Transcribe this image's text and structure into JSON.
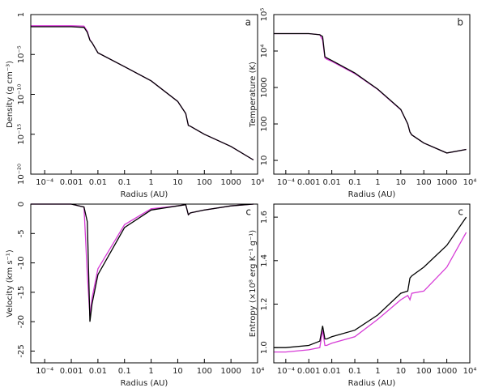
{
  "chart_data": [
    {
      "type": "line",
      "panel_label": "a",
      "xlabel": "Radius (AU)",
      "ylabel": "Density (g cm⁻³)",
      "xlog": true,
      "ylog": true,
      "x": [
        3e-05,
        0.0001,
        0.001,
        0.003,
        0.004,
        0.005,
        0.006,
        0.01,
        0.1,
        1,
        10,
        20,
        25,
        30,
        100,
        1000,
        7000
      ],
      "series": [
        {
          "color": "#d63bd6",
          "values": [
            0.04,
            0.04,
            0.04,
            0.035,
            0.008,
            0.0007,
            0.0003,
            1.6e-05,
            3e-07,
            5e-09,
            1.3e-11,
            4e-13,
            1.3e-14,
            1e-14,
            1e-15,
            3e-17,
            6e-19
          ]
        },
        {
          "color": "#000000",
          "values": [
            0.03,
            0.03,
            0.03,
            0.025,
            0.006,
            0.0006,
            0.0003,
            1.6e-05,
            3e-07,
            5e-09,
            1.3e-11,
            4e-13,
            1.3e-14,
            1e-14,
            1e-15,
            3e-17,
            6e-19
          ]
        }
      ],
      "xlim": [
        3e-05,
        10000.0
      ],
      "ylim": [
        1e-20,
        1
      ],
      "xticks": [
        {
          "value": 0.0001,
          "label": "10⁻⁴"
        },
        0.001,
        0.01,
        0.1,
        1,
        10,
        100,
        1000,
        {
          "value": 10000.0,
          "label": "10⁴"
        }
      ],
      "yticks": [
        1,
        {
          "value": 1e-05,
          "label": "10⁻⁵"
        },
        {
          "value": 1e-10,
          "label": "10⁻¹⁰"
        },
        {
          "value": 1e-15,
          "label": "10⁻¹⁵"
        },
        {
          "value": 1e-20,
          "label": "10⁻²⁰"
        }
      ]
    },
    {
      "type": "line",
      "panel_label": "b",
      "xlabel": "Radius (AU)",
      "ylabel": "Temperature (K)",
      "xlog": true,
      "ylog": true,
      "x": [
        3e-05,
        0.0001,
        0.001,
        0.003,
        0.004,
        0.005,
        0.006,
        0.01,
        0.1,
        1,
        10,
        20,
        25,
        30,
        100,
        1000,
        7000
      ],
      "series": [
        {
          "color": "#d63bd6",
          "values": [
            30000.0,
            30000.0,
            30000.0,
            28000.0,
            20000.0,
            6500,
            6000,
            5200,
            2400,
            880,
            245,
            100,
            60,
            50,
            30,
            16,
            20
          ]
        },
        {
          "color": "#000000",
          "values": [
            30000.0,
            30000.0,
            30000.0,
            28000.0,
            25000.0,
            7000,
            6500,
            5500,
            2500,
            900,
            250,
            100,
            60,
            50,
            30,
            16,
            20
          ]
        }
      ],
      "xlim": [
        3e-05,
        10000.0
      ],
      "ylim": [
        4.2,
        100000.0
      ],
      "xticks": [
        {
          "value": 0.0001,
          "label": "10⁻⁴"
        },
        0.001,
        0.01,
        0.1,
        1,
        10,
        100,
        1000,
        {
          "value": 10000.0,
          "label": "10⁴"
        }
      ],
      "yticks": [
        {
          "value": 100000.0,
          "label": "10⁵"
        },
        {
          "value": 10000.0,
          "label": "10⁴"
        },
        1000,
        100,
        10
      ]
    },
    {
      "type": "line",
      "panel_label": "c",
      "xlabel": "Radius (AU)",
      "ylabel": "Velocity (km s⁻¹)",
      "xlog": true,
      "ylog": false,
      "x": [
        3e-05,
        0.0001,
        0.001,
        0.003,
        0.004,
        0.005,
        0.006,
        0.01,
        0.1,
        1,
        10,
        20,
        25,
        30,
        100,
        1000,
        7000
      ],
      "series": [
        {
          "color": "#d63bd6",
          "values": [
            0,
            0,
            0,
            -0.5,
            -12,
            -19,
            -16,
            -11,
            -3.5,
            -0.8,
            -0.3,
            -0.1,
            -1.8,
            -1.5,
            -1,
            -0.3,
            0
          ]
        },
        {
          "color": "#000000",
          "values": [
            0,
            0,
            0,
            -0.5,
            -3,
            -20,
            -17,
            -12,
            -4,
            -1,
            -0.3,
            -0.1,
            -1.8,
            -1.5,
            -1,
            -0.3,
            0
          ]
        }
      ],
      "xlim": [
        3e-05,
        10000.0
      ],
      "ylim": [
        -27,
        0
      ],
      "xticks": [
        {
          "value": 0.0001,
          "label": "10⁻⁴"
        },
        0.001,
        0.01,
        0.1,
        1,
        10,
        100,
        1000,
        {
          "value": 10000.0,
          "label": "10⁴"
        }
      ],
      "yticks": [
        0,
        -5,
        -10,
        -15,
        -20,
        -25
      ]
    },
    {
      "type": "line",
      "panel_label": "c",
      "xlabel": "Radius (AU)",
      "ylabel": "Entropy (×10⁸ erg K⁻¹ g⁻¹)",
      "xlog": true,
      "ylog": false,
      "x": [
        3e-05,
        0.0001,
        0.001,
        0.003,
        0.004,
        0.005,
        0.006,
        0.01,
        0.1,
        1,
        10,
        20,
        25,
        30,
        100,
        1000,
        7000
      ],
      "series": [
        {
          "color": "#d63bd6",
          "values": [
            0.98,
            0.98,
            0.99,
            1.0,
            1.08,
            1.01,
            1.01,
            1.02,
            1.05,
            1.13,
            1.22,
            1.24,
            1.22,
            1.25,
            1.26,
            1.37,
            1.53
          ]
        },
        {
          "color": "#000000",
          "values": [
            1.0,
            1.0,
            1.01,
            1.03,
            1.1,
            1.04,
            1.04,
            1.05,
            1.08,
            1.15,
            1.25,
            1.26,
            1.32,
            1.33,
            1.37,
            1.47,
            1.6
          ]
        }
      ],
      "xlim": [
        3e-05,
        10000.0
      ],
      "ylim": [
        0.93,
        1.66
      ],
      "xticks": [
        {
          "value": 0.0001,
          "label": "10⁻⁴"
        },
        0.001,
        0.01,
        0.1,
        1,
        10,
        100,
        1000,
        {
          "value": 10000.0,
          "label": "10⁴"
        }
      ],
      "yticks": [
        {
          "value": 1,
          "label": "1.0"
        },
        1.2,
        1.4,
        1.6
      ]
    }
  ]
}
